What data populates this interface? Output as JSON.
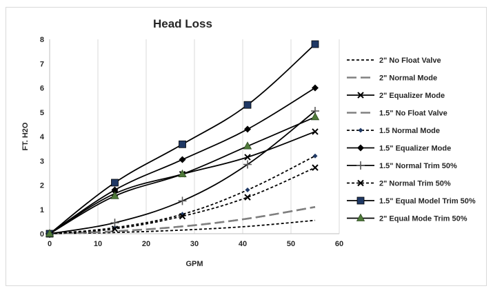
{
  "chart_data": {
    "type": "line",
    "title": "Head Loss",
    "xlabel": "GPM",
    "ylabel": "FT. H2O",
    "xlim": [
      0,
      60
    ],
    "ylim": [
      0,
      8
    ],
    "xticks": [
      0,
      10,
      20,
      30,
      40,
      50,
      60
    ],
    "yticks": [
      0,
      1,
      2,
      3,
      4,
      5,
      6,
      7,
      8
    ],
    "grid": "vertical",
    "legend_position": "right",
    "series": [
      {
        "name": "2\" No Float Valve",
        "x": [
          0,
          13.5,
          27.5,
          41,
          55
        ],
        "y": [
          0,
          0.05,
          0.15,
          0.3,
          0.55
        ],
        "color": "#000000",
        "dash": "4,3",
        "marker": "none",
        "width": 1.8
      },
      {
        "name": "2\" Normal Mode",
        "x": [
          0,
          13.5,
          27.5,
          41,
          55
        ],
        "y": [
          0,
          0.1,
          0.3,
          0.62,
          1.1
        ],
        "color": "#808080",
        "dash": "14,6",
        "marker": "none",
        "width": 2.5
      },
      {
        "name": "2\" Equalizer Mode",
        "x": [
          0,
          13.5,
          27.5,
          41,
          55
        ],
        "y": [
          0,
          1.65,
          2.45,
          3.15,
          4.2
        ],
        "color": "#000000",
        "dash": "",
        "marker": "x",
        "width": 1.8
      },
      {
        "name": "1.5\" No Float Valve",
        "x": [
          0,
          13.5,
          27.5,
          41,
          55
        ],
        "y": [
          0,
          0.1,
          0.3,
          0.62,
          1.1
        ],
        "color": "#808080",
        "dash": "14,6",
        "marker": "none",
        "width": 2.5
      },
      {
        "name": "1.5 Normal Mode",
        "x": [
          0,
          13.5,
          27.5,
          41,
          55
        ],
        "y": [
          0,
          0.25,
          0.8,
          1.8,
          3.2
        ],
        "color": "#000000",
        "dash": "4,3",
        "marker": "diamond-small",
        "width": 1.8
      },
      {
        "name": "1.5\" Equalizer Mode",
        "x": [
          0,
          13.5,
          27.5,
          41,
          55
        ],
        "y": [
          0,
          1.8,
          3.05,
          4.3,
          6.0
        ],
        "color": "#000000",
        "dash": "",
        "marker": "diamond",
        "width": 1.8
      },
      {
        "name": "1.5\" Normal Trim 50%",
        "x": [
          0,
          13.5,
          27.5,
          41,
          55
        ],
        "y": [
          0,
          0.45,
          1.35,
          2.85,
          5.05
        ],
        "color": "#000000",
        "dash": "",
        "marker": "plus",
        "width": 1.8
      },
      {
        "name": "2\" Normal Trim 50%",
        "x": [
          0,
          13.5,
          27.5,
          41,
          55
        ],
        "y": [
          0,
          0.2,
          0.72,
          1.5,
          2.72
        ],
        "color": "#000000",
        "dash": "4,3",
        "marker": "x",
        "width": 1.8
      },
      {
        "name": "1.5\" Equal Model Trim 50%",
        "x": [
          0,
          13.5,
          27.5,
          41,
          55
        ],
        "y": [
          0,
          2.1,
          3.68,
          5.3,
          7.8
        ],
        "color": "#000000",
        "dash": "",
        "marker": "square",
        "width": 1.8,
        "markerFill": "#1f3864"
      },
      {
        "name": "2\" Equal Mode Trim 50%",
        "x": [
          0,
          13.5,
          27.5,
          41,
          55
        ],
        "y": [
          0,
          1.55,
          2.45,
          3.6,
          4.8
        ],
        "color": "#000000",
        "dash": "",
        "marker": "triangle",
        "width": 1.8,
        "markerFill": "#4f7a3a"
      }
    ]
  }
}
